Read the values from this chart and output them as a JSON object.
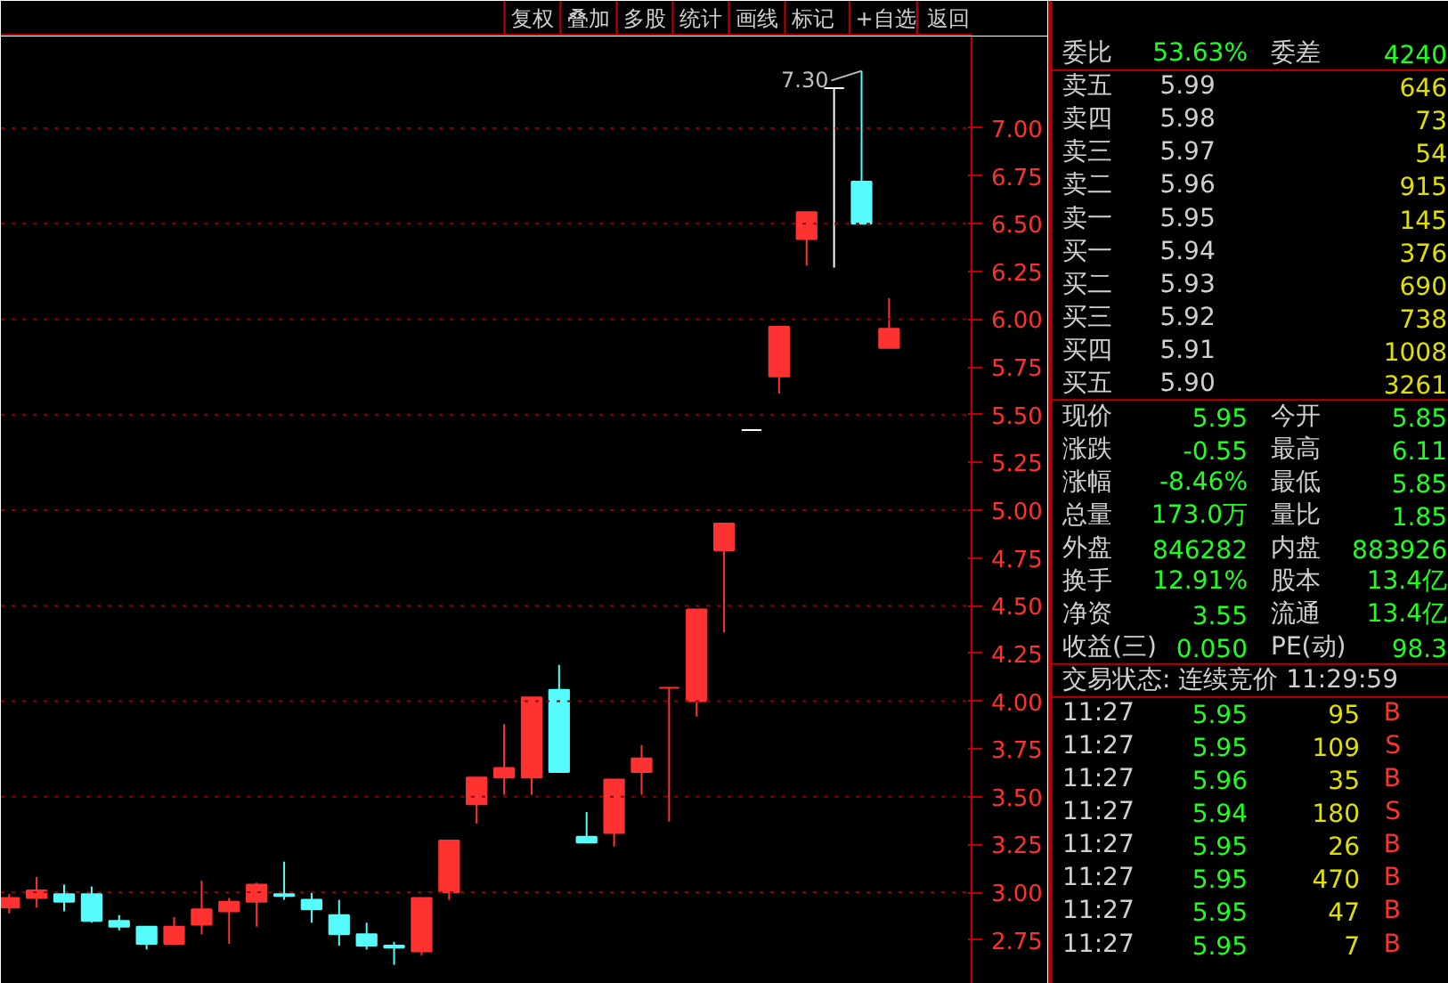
{
  "chart_data": [
    {
      "type": "candlestick",
      "categories": [
        null,
        null,
        null,
        null,
        null,
        null,
        null,
        null,
        null,
        null,
        null,
        null,
        null,
        null,
        null,
        null,
        null,
        null,
        null,
        null,
        null,
        null,
        null,
        null,
        null,
        null,
        null,
        null,
        null,
        null,
        null,
        null,
        null
      ],
      "ohlc": [
        [
          2.92,
          2.99,
          2.89,
          2.97
        ],
        [
          2.97,
          3.08,
          2.92,
          3.01
        ],
        [
          2.99,
          3.04,
          2.9,
          2.95
        ],
        [
          2.99,
          3.03,
          2.84,
          2.85
        ],
        [
          2.85,
          2.88,
          2.8,
          2.82
        ],
        [
          2.82,
          2.82,
          2.7,
          2.73
        ],
        [
          2.73,
          2.87,
          2.73,
          2.82
        ],
        [
          2.83,
          3.06,
          2.78,
          2.91
        ],
        [
          2.9,
          2.97,
          2.73,
          2.95
        ],
        [
          2.95,
          3.05,
          2.82,
          3.04
        ],
        [
          2.99,
          3.16,
          2.96,
          2.98
        ],
        [
          2.96,
          3.0,
          2.84,
          2.91
        ],
        [
          2.88,
          2.96,
          2.72,
          2.78
        ],
        [
          2.78,
          2.84,
          2.7,
          2.72
        ],
        [
          2.72,
          2.74,
          2.62,
          2.71
        ],
        [
          2.69,
          2.97,
          2.67,
          2.97
        ],
        [
          3.0,
          3.27,
          2.96,
          3.27
        ],
        [
          3.46,
          3.6,
          3.36,
          3.6
        ],
        [
          3.6,
          3.88,
          3.51,
          3.65
        ],
        [
          3.6,
          4.02,
          3.51,
          4.02
        ],
        [
          4.06,
          4.19,
          3.63,
          3.63
        ],
        [
          3.29,
          3.42,
          3.26,
          3.26
        ],
        [
          3.31,
          3.59,
          3.24,
          3.59
        ],
        [
          3.63,
          3.77,
          3.51,
          3.7
        ],
        [
          4.07,
          4.07,
          3.37,
          4.07
        ],
        [
          4.0,
          4.48,
          3.92,
          4.48
        ],
        [
          4.79,
          4.93,
          4.36,
          4.93
        ],
        [
          5.42,
          5.42,
          5.42,
          5.42
        ],
        [
          5.7,
          5.96,
          5.61,
          5.96
        ],
        [
          6.42,
          6.56,
          6.28,
          6.56
        ],
        [
          7.21,
          7.21,
          6.27,
          7.21
        ],
        [
          6.72,
          7.3,
          6.5,
          6.5
        ],
        [
          5.85,
          6.11,
          5.85,
          5.95
        ]
      ],
      "colors": [
        "#ff3232",
        "#ff3232",
        "#54fcfc",
        "#54fcfc",
        "#54fcfc",
        "#54fcfc",
        "#ff3232",
        "#ff3232",
        "#ff3232",
        "#ff3232",
        "#54fcfc",
        "#54fcfc",
        "#54fcfc",
        "#54fcfc",
        "#54fcfc",
        "#ff3232",
        "#ff3232",
        "#ff3232",
        "#ff3232",
        "#ff3232",
        "#54fcfc",
        "#54fcfc",
        "#ff3232",
        "#ff3232",
        "#ff3232",
        "#ff3232",
        "#ff3232",
        "#ffffff",
        "#ff3232",
        "#ff3232",
        "#ffffff",
        "#54fcfc",
        "#ff3232"
      ],
      "ylim": [
        2.52,
        7.48
      ],
      "yticks": [
        {
          "value": 2.75,
          "label": "2.75"
        },
        {
          "value": 3.0,
          "label": "3.00"
        },
        {
          "value": 3.25,
          "label": "3.25"
        },
        {
          "value": 3.5,
          "label": "3.50"
        },
        {
          "value": 3.75,
          "label": "3.75"
        },
        {
          "value": 4.0,
          "label": "4.00"
        },
        {
          "value": 4.25,
          "label": "4.25"
        },
        {
          "value": 4.5,
          "label": "4.50"
        },
        {
          "value": 4.75,
          "label": "4.75"
        },
        {
          "value": 5.0,
          "label": "5.00"
        },
        {
          "value": 5.25,
          "label": "5.25"
        },
        {
          "value": 5.5,
          "label": "5.50"
        },
        {
          "value": 5.75,
          "label": "5.75"
        },
        {
          "value": 6.0,
          "label": "6.00"
        },
        {
          "value": 6.25,
          "label": "6.25"
        },
        {
          "value": 6.5,
          "label": "6.50"
        },
        {
          "value": 6.75,
          "label": "6.75"
        },
        {
          "value": 7.0,
          "label": "7.00"
        }
      ],
      "ref_lines": [
        {
          "axis": "y",
          "value": 3.0,
          "color": "#900000",
          "line_style": "dotted"
        },
        {
          "axis": "y",
          "value": 3.5,
          "color": "#900000",
          "line_style": "dotted"
        },
        {
          "axis": "y",
          "value": 4.0,
          "color": "#900000",
          "line_style": "dotted"
        },
        {
          "axis": "y",
          "value": 4.5,
          "color": "#900000",
          "line_style": "dotted"
        },
        {
          "axis": "y",
          "value": 5.0,
          "color": "#900000",
          "line_style": "dotted"
        },
        {
          "axis": "y",
          "value": 5.5,
          "color": "#900000",
          "line_style": "dotted"
        },
        {
          "axis": "y",
          "value": 6.0,
          "color": "#900000",
          "line_style": "dotted"
        },
        {
          "axis": "y",
          "value": 6.5,
          "color": "#900000",
          "line_style": "dotted"
        },
        {
          "axis": "y",
          "value": 7.0,
          "color": "#900000",
          "line_style": "dotted"
        }
      ],
      "tick_labels": "y",
      "annotations": [
        "7.30",
        "复权",
        "叠加",
        "多股",
        "统计",
        "画线",
        "标记",
        "+自选",
        "返回"
      ]
    },
    {
      "type": "other",
      "annotations": [
        "委比  53.63%  委差  4240",
        "卖五  5.99  646",
        "卖四  5.98  73",
        "卖三  5.97  54",
        "卖二  5.96  915",
        "卖一  5.95  145",
        "买一  5.94  376",
        "买二  5.93  690",
        "买三  5.92  738",
        "买四  5.91  1008",
        "买五  5.90  3261",
        "现价  5.95  今开  5.85",
        "涨跌  -0.55  最高  6.11",
        "涨幅  -8.46%  最低  5.85",
        "总量  173.0万  量比  1.85",
        "外盘  846282  内盘  883926",
        "换手  12.91%  股本  13.4亿",
        "净资  3.55  流通  13.4亿",
        "收益(三)  0.050  PE(动)  98.3",
        "交易状态: 连续竞价 11:29:59",
        "11:27  5.95  95  B",
        "11:27  5.95  109  S",
        "11:27  5.96  35  B",
        "11:27  5.94  180  S",
        "11:27  5.95  26  B",
        "11:27  5.95  470  B",
        "11:27  5.95  47  B",
        "11:27  5.95  7  B"
      ]
    }
  ]
}
